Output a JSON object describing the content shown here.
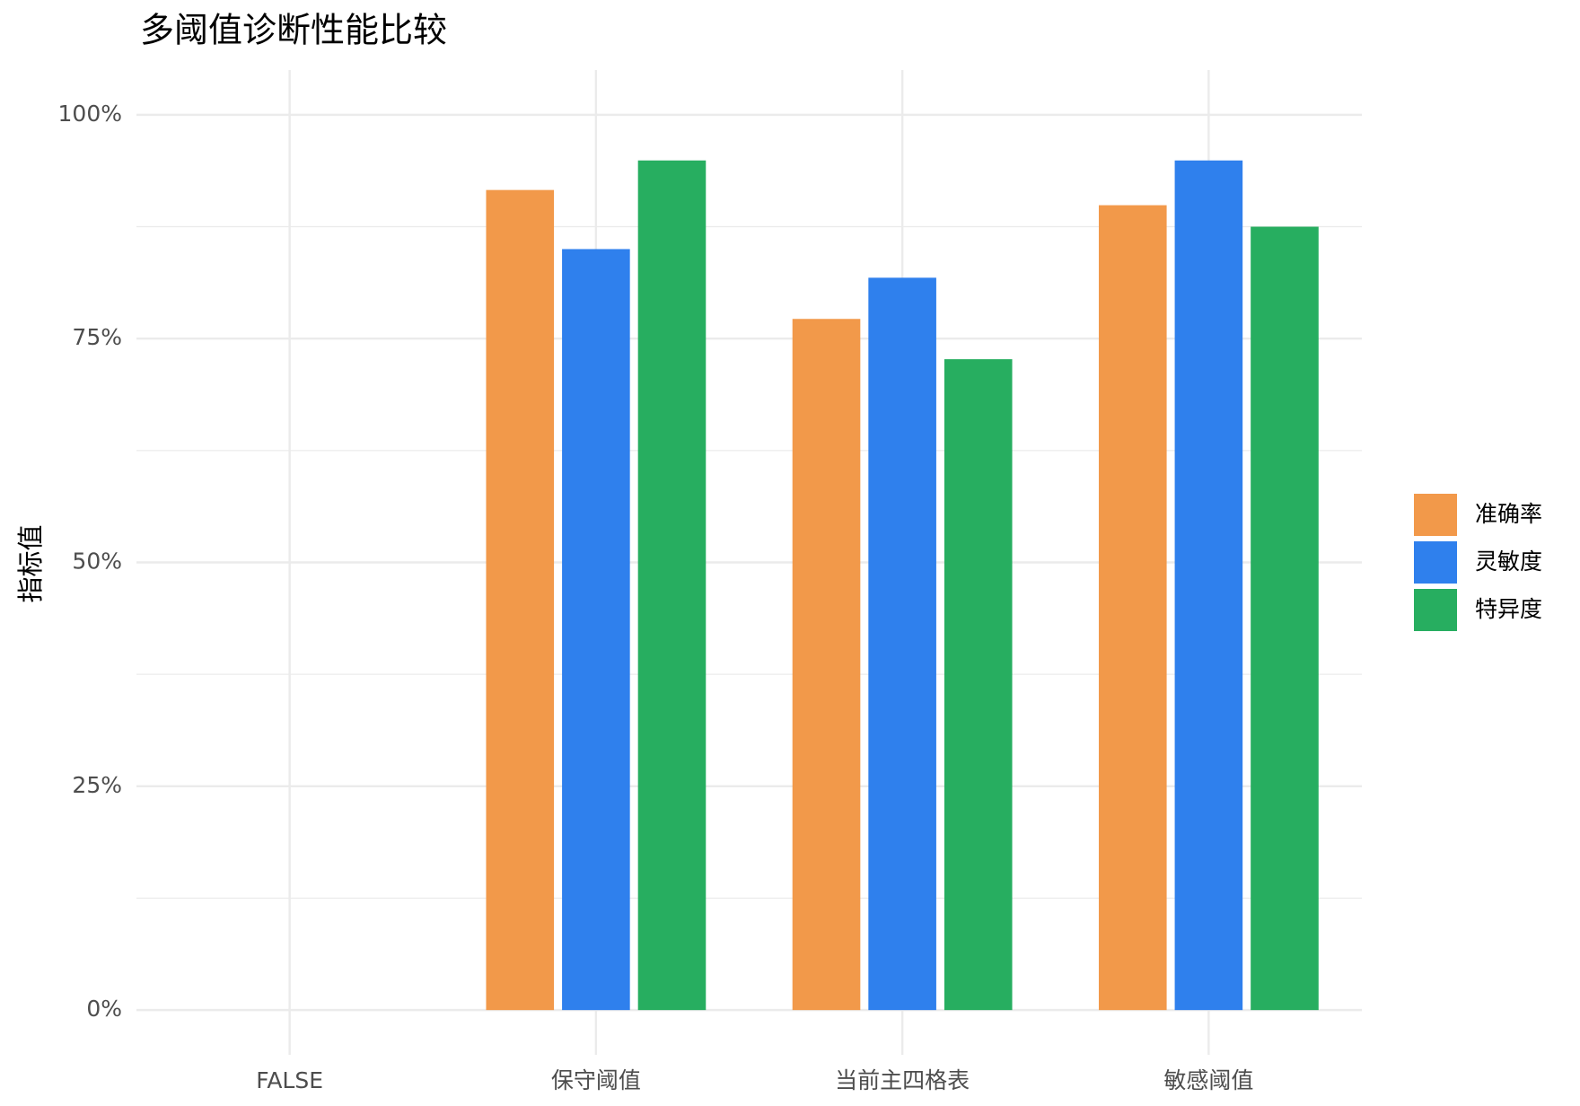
{
  "chart_data": {
    "type": "bar",
    "title": "多阈值诊断性能比较",
    "y_label": "指标值",
    "categories": [
      "FALSE",
      "保守阈值",
      "当前主四格表",
      "敏感阈值"
    ],
    "series": [
      {
        "name": "准确率",
        "color": "#f2994a",
        "values": [
          null,
          91.6,
          77.2,
          89.9
        ]
      },
      {
        "name": "灵敏度",
        "color": "#2f80ed",
        "values": [
          null,
          85.0,
          81.8,
          94.9
        ]
      },
      {
        "name": "特异度",
        "color": "#27ae60",
        "values": [
          null,
          94.9,
          72.7,
          87.5
        ]
      }
    ],
    "ylim": [
      -5,
      105
    ],
    "yticks": [
      {
        "value": 0,
        "label": "0%"
      },
      {
        "value": 25,
        "label": "25%"
      },
      {
        "value": 50,
        "label": "50%"
      },
      {
        "value": 75,
        "label": "75%"
      },
      {
        "value": 100,
        "label": "100%"
      }
    ],
    "grid": true,
    "legend": "right"
  }
}
